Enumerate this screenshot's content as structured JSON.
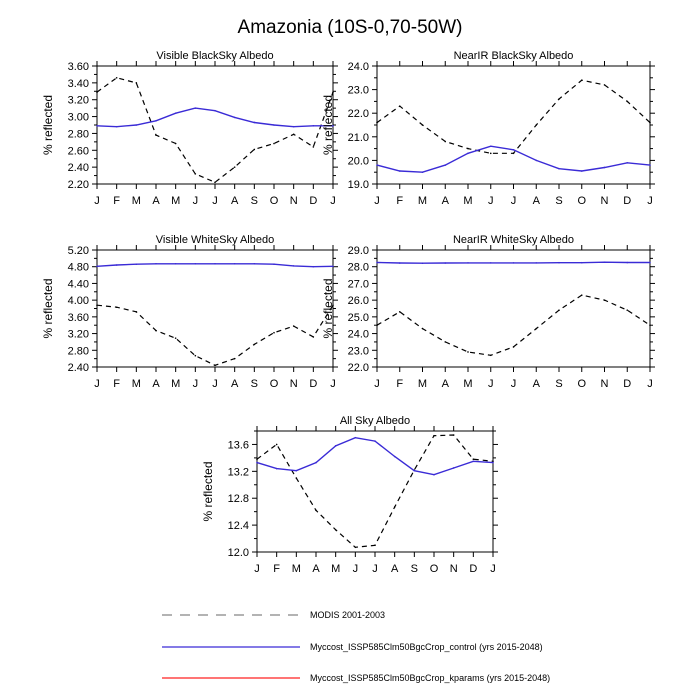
{
  "figure_title": "Amazonia (10S-0,70-50W)",
  "colors": {
    "modis": "#000000",
    "control": "#3a2bd6",
    "kparams": "#ff2020",
    "legend_dash": "#9a9a9a"
  },
  "legend": {
    "modis": "MODIS 2001-2003",
    "control": "Myccost_ISSP585Clm50BgcCrop_control (yrs 2015-2048)",
    "kparams": "Myccost_ISSP585Clm50BgcCrop_kparams (yrs 2015-2048)"
  },
  "chart_data": [
    {
      "type": "line",
      "title": "Visible BlackSky Albedo",
      "ylabel": "% reflected",
      "categories": [
        "J",
        "F",
        "M",
        "A",
        "M",
        "J",
        "J",
        "A",
        "S",
        "O",
        "N",
        "D",
        "J"
      ],
      "ylim": [
        2.2,
        3.6
      ],
      "yticks": [
        2.2,
        2.4,
        2.6,
        2.8,
        3.0,
        3.2,
        3.4,
        3.6
      ],
      "ytick_labels": [
        "2.20",
        "2.40",
        "2.60",
        "2.80",
        "3.00",
        "3.20",
        "3.40",
        "3.60"
      ],
      "series": [
        {
          "name": "MODIS 2001-2003",
          "style": "dashed",
          "color": "#000000",
          "values": [
            3.29,
            3.46,
            3.4,
            2.78,
            2.68,
            2.32,
            2.22,
            2.4,
            2.61,
            2.68,
            2.79,
            2.64,
            3.29
          ]
        },
        {
          "name": "Myccost_ISSP585Clm50BgcCrop_control (yrs 2015-2048)",
          "style": "solid",
          "color": "#3a2bd6",
          "values": [
            2.89,
            2.88,
            2.9,
            2.95,
            3.04,
            3.1,
            3.07,
            2.99,
            2.93,
            2.9,
            2.88,
            2.89,
            2.89
          ]
        }
      ]
    },
    {
      "type": "line",
      "title": "NearIR BlackSky Albedo",
      "ylabel": "% reflected",
      "categories": [
        "J",
        "F",
        "M",
        "A",
        "M",
        "J",
        "J",
        "A",
        "S",
        "O",
        "N",
        "D",
        "J"
      ],
      "ylim": [
        19.0,
        24.0
      ],
      "yticks": [
        19,
        20,
        21,
        22,
        23,
        24
      ],
      "ytick_labels": [
        "19.0",
        "20.0",
        "21.0",
        "22.0",
        "23.0",
        "24.0"
      ],
      "series": [
        {
          "name": "MODIS 2001-2003",
          "style": "dashed",
          "color": "#000000",
          "values": [
            21.6,
            22.3,
            21.5,
            20.8,
            20.5,
            20.3,
            20.3,
            21.5,
            22.6,
            23.4,
            23.2,
            22.5,
            21.6
          ]
        },
        {
          "name": "Myccost_ISSP585Clm50BgcCrop_control (yrs 2015-2048)",
          "style": "solid",
          "color": "#3a2bd6",
          "values": [
            19.8,
            19.55,
            19.5,
            19.8,
            20.3,
            20.6,
            20.45,
            20.0,
            19.65,
            19.55,
            19.7,
            19.9,
            19.8
          ]
        }
      ]
    },
    {
      "type": "line",
      "title": "Visible WhiteSky Albedo",
      "ylabel": "% reflected",
      "categories": [
        "J",
        "F",
        "M",
        "A",
        "M",
        "J",
        "J",
        "A",
        "S",
        "O",
        "N",
        "D",
        "J"
      ],
      "ylim": [
        2.4,
        5.2
      ],
      "yticks": [
        2.4,
        2.8,
        3.2,
        3.6,
        4.0,
        4.4,
        4.8,
        5.2
      ],
      "ytick_labels": [
        "2.40",
        "2.80",
        "3.20",
        "3.60",
        "4.00",
        "4.40",
        "4.80",
        "5.20"
      ],
      "series": [
        {
          "name": "MODIS 2001-2003",
          "style": "dashed",
          "color": "#000000",
          "values": [
            3.88,
            3.83,
            3.72,
            3.27,
            3.09,
            2.67,
            2.44,
            2.6,
            2.94,
            3.22,
            3.38,
            3.12,
            3.88
          ]
        },
        {
          "name": "Myccost_ISSP585Clm50BgcCrop_control (yrs 2015-2048)",
          "style": "solid",
          "color": "#3a2bd6",
          "values": [
            4.81,
            4.84,
            4.86,
            4.87,
            4.87,
            4.87,
            4.87,
            4.87,
            4.87,
            4.86,
            4.82,
            4.8,
            4.81
          ]
        }
      ]
    },
    {
      "type": "line",
      "title": "NearIR WhiteSky Albedo",
      "ylabel": "% reflected",
      "categories": [
        "J",
        "F",
        "M",
        "A",
        "M",
        "J",
        "J",
        "A",
        "S",
        "O",
        "N",
        "D",
        "J"
      ],
      "ylim": [
        22.0,
        29.0
      ],
      "yticks": [
        22,
        23,
        24,
        25,
        26,
        27,
        28,
        29
      ],
      "ytick_labels": [
        "22.0",
        "23.0",
        "24.0",
        "25.0",
        "26.0",
        "27.0",
        "28.0",
        "29.0"
      ],
      "series": [
        {
          "name": "MODIS 2001-2003",
          "style": "dashed",
          "color": "#000000",
          "values": [
            24.5,
            25.3,
            24.3,
            23.5,
            22.9,
            22.7,
            23.2,
            24.3,
            25.4,
            26.3,
            26.0,
            25.4,
            24.5
          ]
        },
        {
          "name": "Myccost_ISSP585Clm50BgcCrop_control (yrs 2015-2048)",
          "style": "solid",
          "color": "#3a2bd6",
          "values": [
            28.25,
            28.22,
            28.21,
            28.22,
            28.23,
            28.23,
            28.23,
            28.23,
            28.24,
            28.24,
            28.27,
            28.25,
            28.25
          ]
        }
      ]
    },
    {
      "type": "line",
      "title": "All Sky Albedo",
      "ylabel": "% reflected",
      "categories": [
        "J",
        "F",
        "M",
        "A",
        "M",
        "J",
        "J",
        "A",
        "S",
        "O",
        "N",
        "D",
        "J"
      ],
      "ylim": [
        12.0,
        13.8
      ],
      "yticks": [
        12.0,
        12.4,
        12.8,
        13.2,
        13.6
      ],
      "ytick_labels": [
        "12.0",
        "12.4",
        "12.8",
        "13.2",
        "13.6"
      ],
      "series": [
        {
          "name": "MODIS 2001-2003",
          "style": "dashed",
          "color": "#000000",
          "values": [
            13.38,
            13.6,
            13.1,
            12.62,
            12.33,
            12.07,
            12.1,
            12.67,
            13.22,
            13.73,
            13.74,
            13.38,
            13.35
          ]
        },
        {
          "name": "Myccost_ISSP585Clm50BgcCrop_control (yrs 2015-2048)",
          "style": "solid",
          "color": "#3a2bd6",
          "values": [
            13.33,
            13.24,
            13.21,
            13.33,
            13.58,
            13.7,
            13.65,
            13.42,
            13.21,
            13.15,
            13.25,
            13.35,
            13.33
          ]
        }
      ]
    }
  ]
}
